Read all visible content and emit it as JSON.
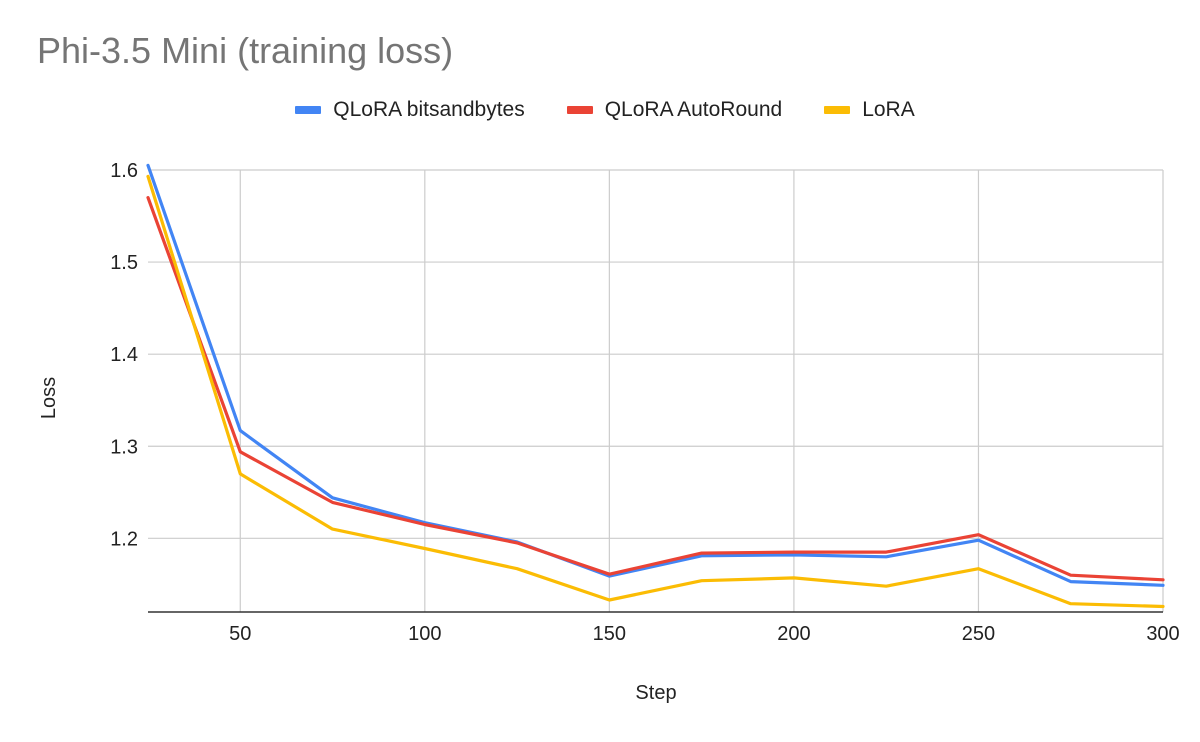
{
  "chart_data": {
    "type": "line",
    "title": "Phi-3.5 Mini (training loss)",
    "xlabel": "Step",
    "ylabel": "Loss",
    "xlim": [
      25,
      300
    ],
    "ylim": [
      1.12,
      1.6
    ],
    "x_ticks": [
      50,
      100,
      150,
      200,
      250,
      300
    ],
    "y_ticks": [
      1.2,
      1.3,
      1.4,
      1.5,
      1.6
    ],
    "x_tick_labels": [
      "50",
      "100",
      "150",
      "200",
      "250",
      "300"
    ],
    "y_tick_labels": [
      "1.2",
      "1.3",
      "1.4",
      "1.5",
      "1.6"
    ],
    "legend_position": "top",
    "x": [
      25,
      50,
      75,
      100,
      125,
      150,
      175,
      200,
      225,
      250,
      275,
      300
    ],
    "series": [
      {
        "name": "QLoRA bitsandbytes",
        "color": "#4285f4",
        "values": [
          1.605,
          1.317,
          1.244,
          1.217,
          1.196,
          1.159,
          1.181,
          1.182,
          1.18,
          1.198,
          1.153,
          1.149
        ]
      },
      {
        "name": "QLoRA AutoRound",
        "color": "#ea4335",
        "values": [
          1.57,
          1.294,
          1.239,
          1.215,
          1.195,
          1.161,
          1.184,
          1.185,
          1.185,
          1.204,
          1.16,
          1.155
        ]
      },
      {
        "name": "LoRA",
        "color": "#fbbc04",
        "values": [
          1.593,
          1.27,
          1.21,
          1.189,
          1.167,
          1.133,
          1.154,
          1.157,
          1.148,
          1.167,
          1.129,
          1.126
        ]
      }
    ]
  }
}
